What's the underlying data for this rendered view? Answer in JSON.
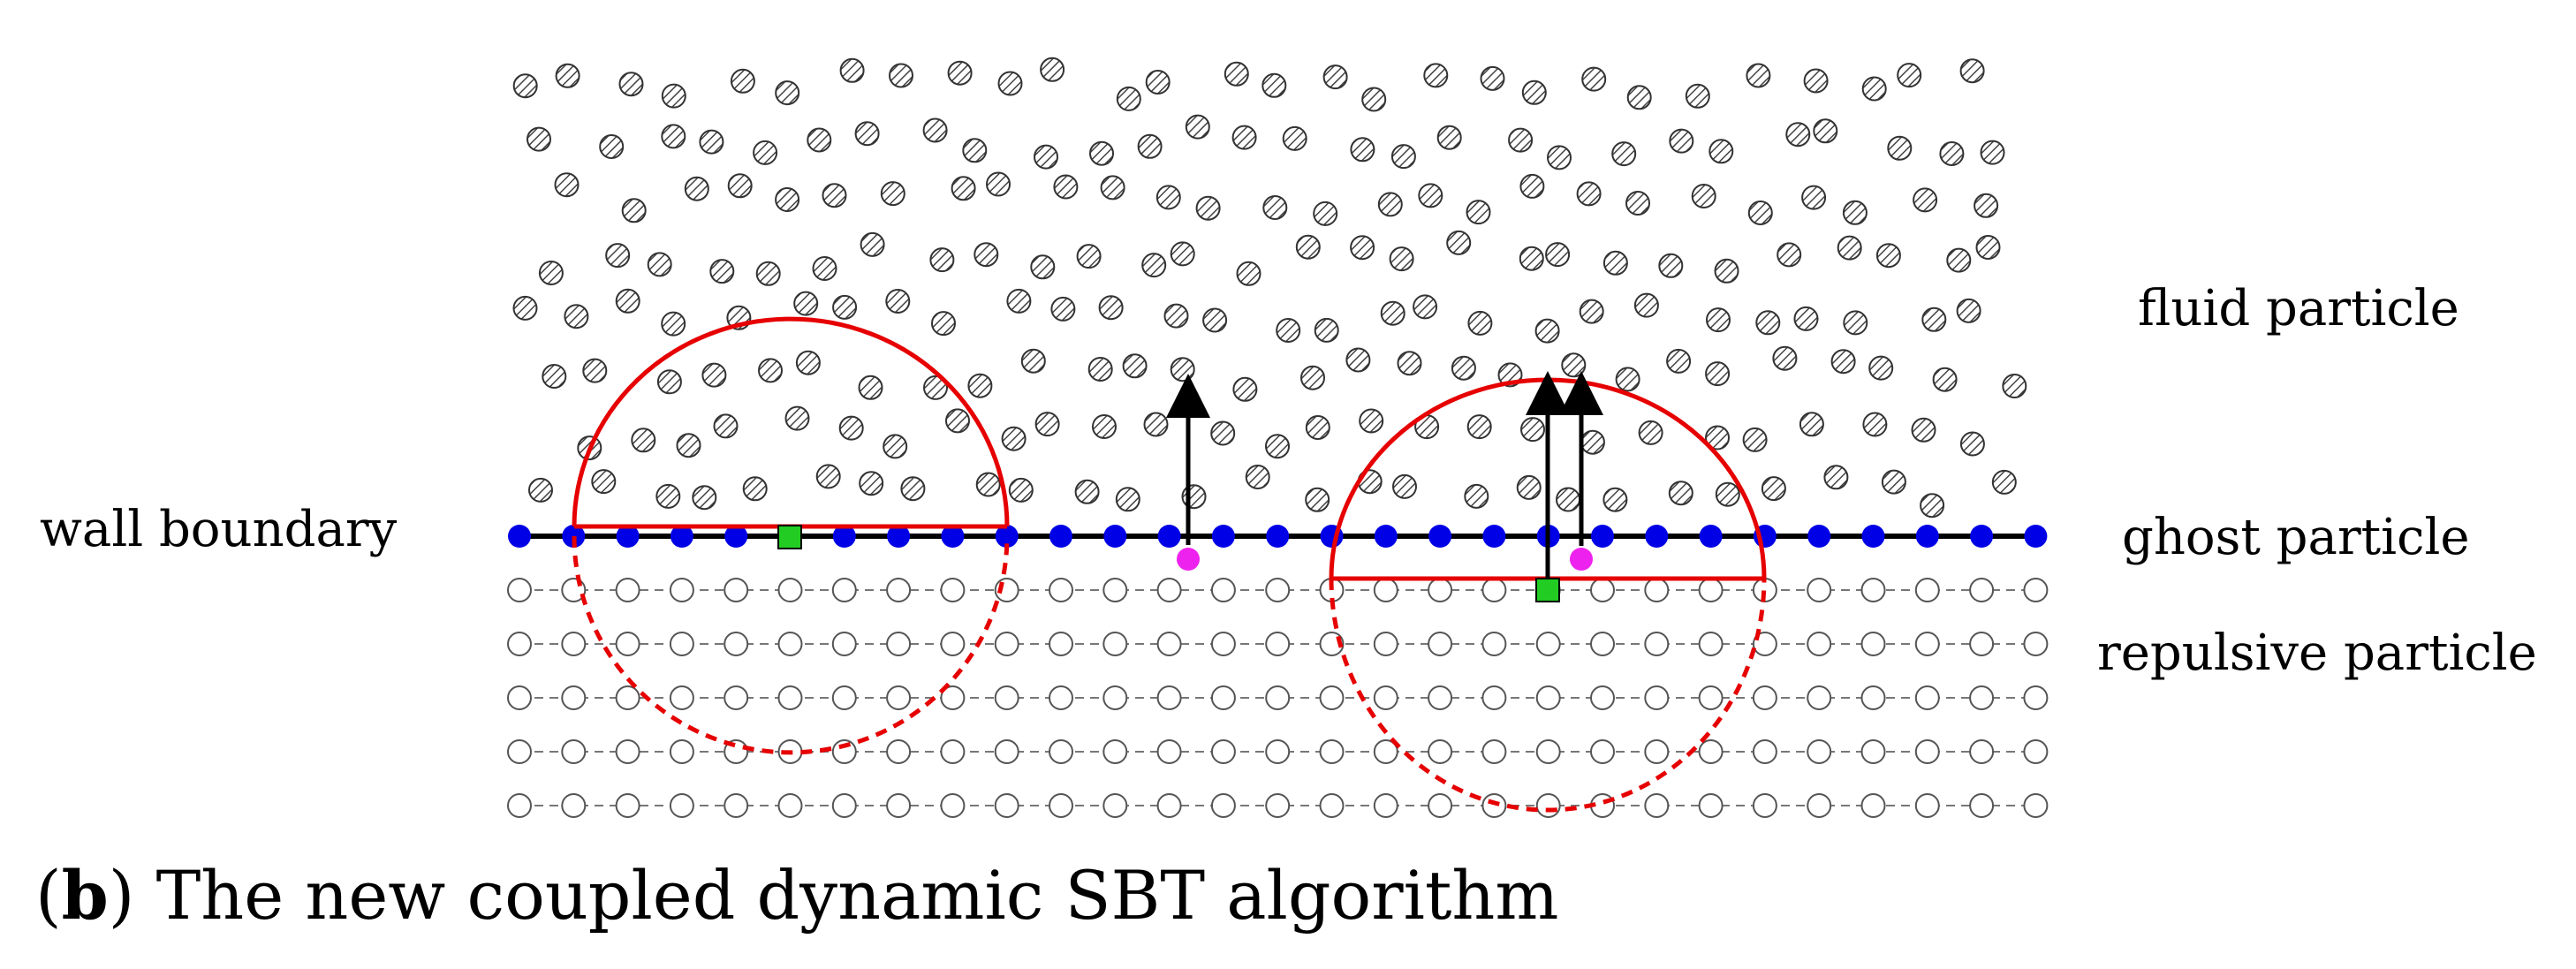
{
  "labels": {
    "fluid": "fluid particle",
    "wall": "wall boundary",
    "ghost": "ghost particle",
    "repulsive": "repulsive particle"
  },
  "caption": {
    "open": "(",
    "letter": "b",
    "close": ")",
    "text": " The new coupled dynamic SBT algorithm"
  },
  "colors": {
    "ghost": "#0000e6",
    "support_circle": "#e60000",
    "target_square": "#22cc22",
    "mirror_point": "#ee22ee",
    "fluid_fill": "#9a9a9a",
    "outline": "#333333",
    "wall_line": "#000000"
  }
}
